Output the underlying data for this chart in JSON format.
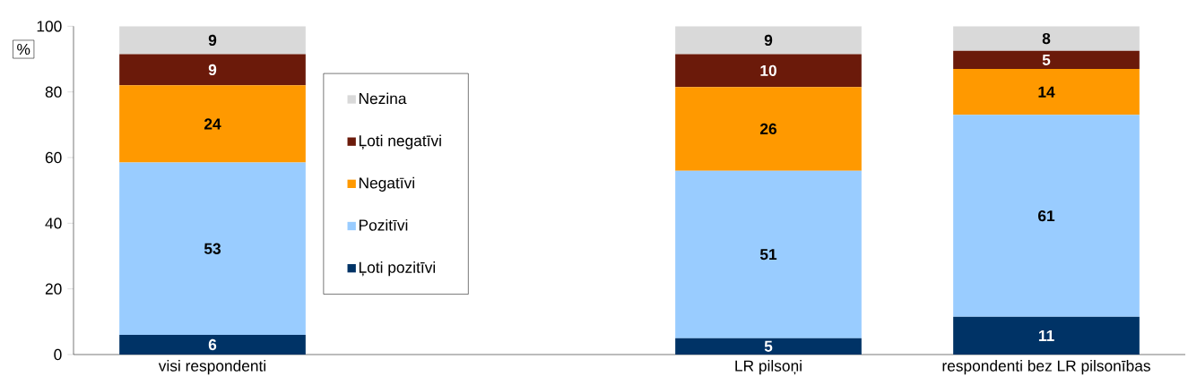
{
  "chart_data": {
    "type": "bar",
    "stacked": true,
    "ylabel": "%",
    "categories": [
      "visi respondenti",
      null,
      "LR pilsoņi",
      "respondenti bez LR pilsonības"
    ],
    "series": [
      {
        "name": "Ļoti pozitīvi",
        "color": "#003366",
        "values": [
          6,
          null,
          5,
          11.5
        ],
        "value_labels": [
          "6",
          null,
          "5",
          "11"
        ]
      },
      {
        "name": "Pozitīvi",
        "color": "#99ccff",
        "values": [
          52.5,
          null,
          51,
          61.5
        ],
        "value_labels": [
          "53",
          null,
          "51",
          "61"
        ]
      },
      {
        "name": "Negatīvi",
        "color": "#ff9900",
        "values": [
          23.5,
          null,
          25.5,
          14
        ],
        "value_labels": [
          "24",
          null,
          "26",
          "14"
        ]
      },
      {
        "name": "Ļoti negatīvi",
        "color": "#6b1a0a",
        "values": [
          9.5,
          null,
          10,
          5.5
        ],
        "value_labels": [
          "9",
          null,
          "10",
          "5"
        ]
      },
      {
        "name": "Nezina",
        "color": "#d9d9d9",
        "values": [
          8.5,
          null,
          8.5,
          7.5
        ],
        "value_labels": [
          "9",
          null,
          "9",
          "8"
        ]
      }
    ],
    "ylim": [
      0,
      100
    ],
    "yticks": [
      0,
      20,
      40,
      60,
      80,
      100
    ],
    "legend": "left",
    "grid": false
  }
}
